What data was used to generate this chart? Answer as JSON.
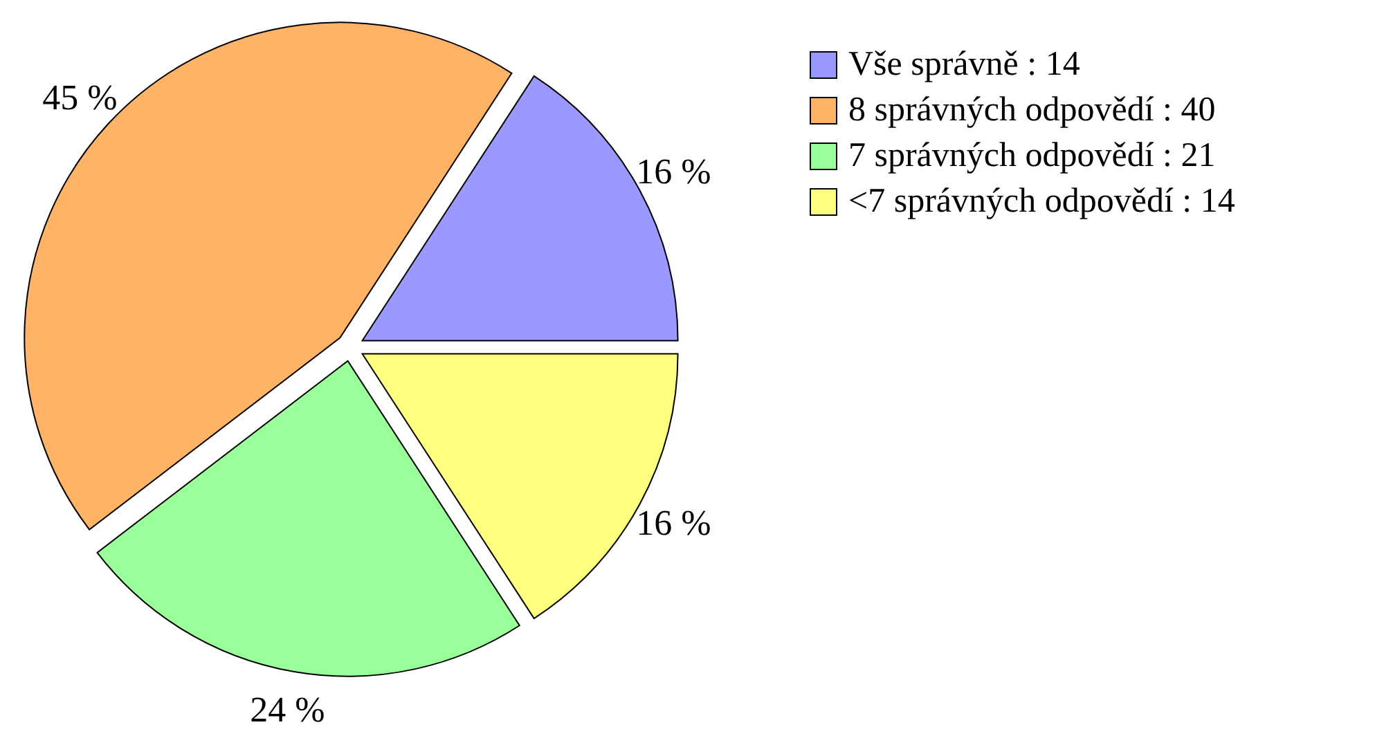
{
  "chart_data": {
    "type": "pie",
    "categories": [
      "Vše správně : 14",
      "8 správných odpovědí : 40",
      "7 správných odpovědí : 21",
      "<7 správných odpovědí : 14"
    ],
    "values": [
      16,
      45,
      24,
      16
    ],
    "value_labels": [
      "16 %",
      "45 %",
      "24 %",
      "16 %"
    ],
    "colors": [
      "#9999ff",
      "#ffb366",
      "#99ff99",
      "#ffff80"
    ],
    "legend": "right"
  }
}
